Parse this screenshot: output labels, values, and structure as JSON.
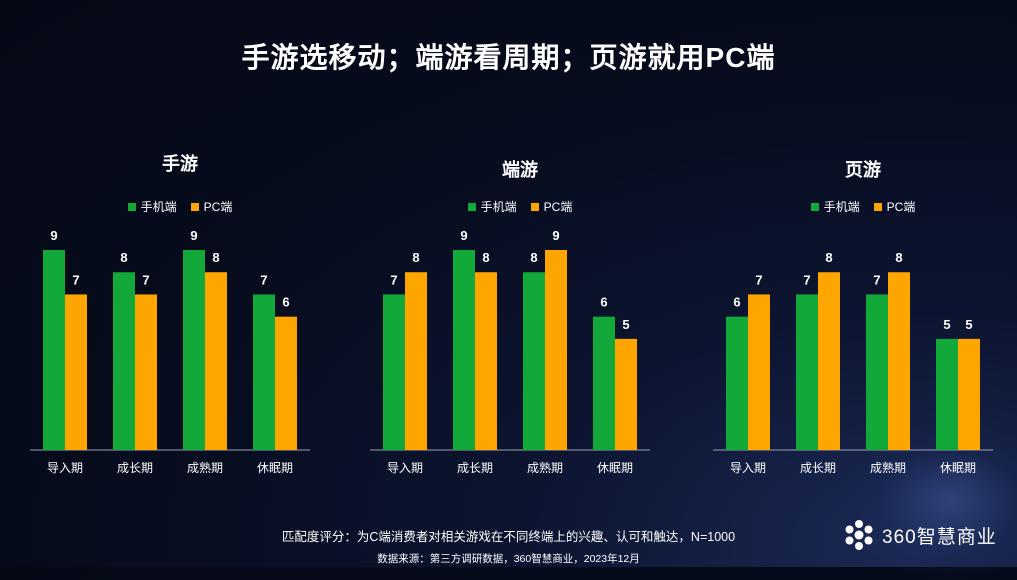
{
  "title": "手游选移动；端游看周期；页游就用PC端",
  "colors": {
    "mobile": "#12a83a",
    "pc": "#ffa500",
    "axis": "#9aa0b0"
  },
  "chart_data": [
    {
      "type": "bar",
      "title": "手游",
      "categories": [
        "导入期",
        "成长期",
        "成熟期",
        "休眠期"
      ],
      "series": [
        {
          "name": "手机端",
          "values": [
            9,
            8,
            9,
            7
          ]
        },
        {
          "name": "PC端",
          "values": [
            7,
            7,
            8,
            6
          ]
        }
      ],
      "ylim": [
        0,
        9
      ]
    },
    {
      "type": "bar",
      "title": "端游",
      "categories": [
        "导入期",
        "成长期",
        "成熟期",
        "休眠期"
      ],
      "series": [
        {
          "name": "手机端",
          "values": [
            7,
            9,
            8,
            6
          ]
        },
        {
          "name": "PC端",
          "values": [
            8,
            8,
            9,
            5
          ]
        }
      ],
      "ylim": [
        0,
        9
      ]
    },
    {
      "type": "bar",
      "title": "页游",
      "categories": [
        "导入期",
        "成长期",
        "成熟期",
        "休眠期"
      ],
      "series": [
        {
          "name": "手机端",
          "values": [
            6,
            7,
            7,
            5
          ]
        },
        {
          "name": "PC端",
          "values": [
            7,
            8,
            8,
            5
          ]
        }
      ],
      "ylim": [
        0,
        9
      ]
    }
  ],
  "footnotes": {
    "scoring": "匹配度评分：为C端消费者对相关游戏在不同终端上的兴趣、认可和触达，N=1000",
    "source": "数据来源：第三方调研数据，360智慧商业，2023年12月"
  },
  "brand": {
    "name": "360智慧商业",
    "icon": "360-flower-logo-icon"
  }
}
